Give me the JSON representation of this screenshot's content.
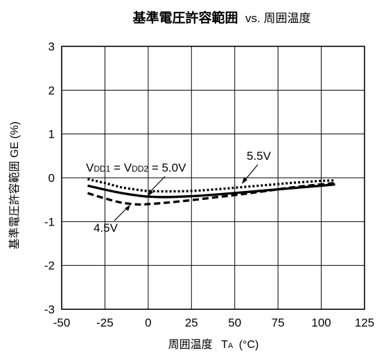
{
  "chart_data": {
    "type": "line",
    "title_main": "基準電圧許容範囲",
    "title_vs": "vs. 周囲温度",
    "xlabel_main": "周囲温度",
    "xlabel_sym": "T",
    "xlabel_sub": "A",
    "xlabel_unit": "(°C)",
    "ylabel": "基準電圧許容範囲 GE (%)",
    "xlim": [
      -50,
      125
    ],
    "ylim": [
      -3,
      3
    ],
    "xticks": [
      -50,
      -25,
      0,
      25,
      50,
      75,
      100,
      125
    ],
    "yticks": [
      -3,
      -2,
      -1,
      0,
      1,
      2,
      3
    ],
    "grid": true,
    "series": [
      {
        "label_prefix": "V",
        "label_sub1": "DD1",
        "label_eq1": " = V",
        "label_sub2": "DD2",
        "label_eq2": " = 5.0V",
        "style": "solid",
        "x": [
          -35,
          -25,
          -15,
          -5,
          0,
          10,
          25,
          40,
          55,
          70,
          85,
          100,
          108
        ],
        "y": [
          -0.18,
          -0.27,
          -0.35,
          -0.41,
          -0.43,
          -0.44,
          -0.42,
          -0.38,
          -0.33,
          -0.28,
          -0.23,
          -0.18,
          -0.15
        ]
      },
      {
        "label": "5.5V",
        "style": "dotted",
        "x": [
          -35,
          -25,
          -15,
          -5,
          0,
          10,
          25,
          40,
          55,
          70,
          85,
          100,
          108
        ],
        "y": [
          -0.03,
          -0.12,
          -0.22,
          -0.28,
          -0.3,
          -0.31,
          -0.3,
          -0.26,
          -0.21,
          -0.16,
          -0.11,
          -0.07,
          -0.06
        ]
      },
      {
        "label": "4.5V",
        "style": "dashed",
        "x": [
          -35,
          -25,
          -15,
          -5,
          0,
          10,
          25,
          40,
          55,
          70,
          85,
          100,
          108
        ],
        "y": [
          -0.35,
          -0.47,
          -0.57,
          -0.61,
          -0.6,
          -0.57,
          -0.51,
          -0.44,
          -0.37,
          -0.29,
          -0.21,
          -0.15,
          -0.12
        ]
      }
    ],
    "annotations": [
      {
        "text": "5.5V",
        "series": "5.5V"
      },
      {
        "text": "4.5V",
        "series": "4.5V"
      },
      {
        "text": "VDD1 = VDD2 = 5.0V",
        "series": "5.0V"
      }
    ]
  }
}
